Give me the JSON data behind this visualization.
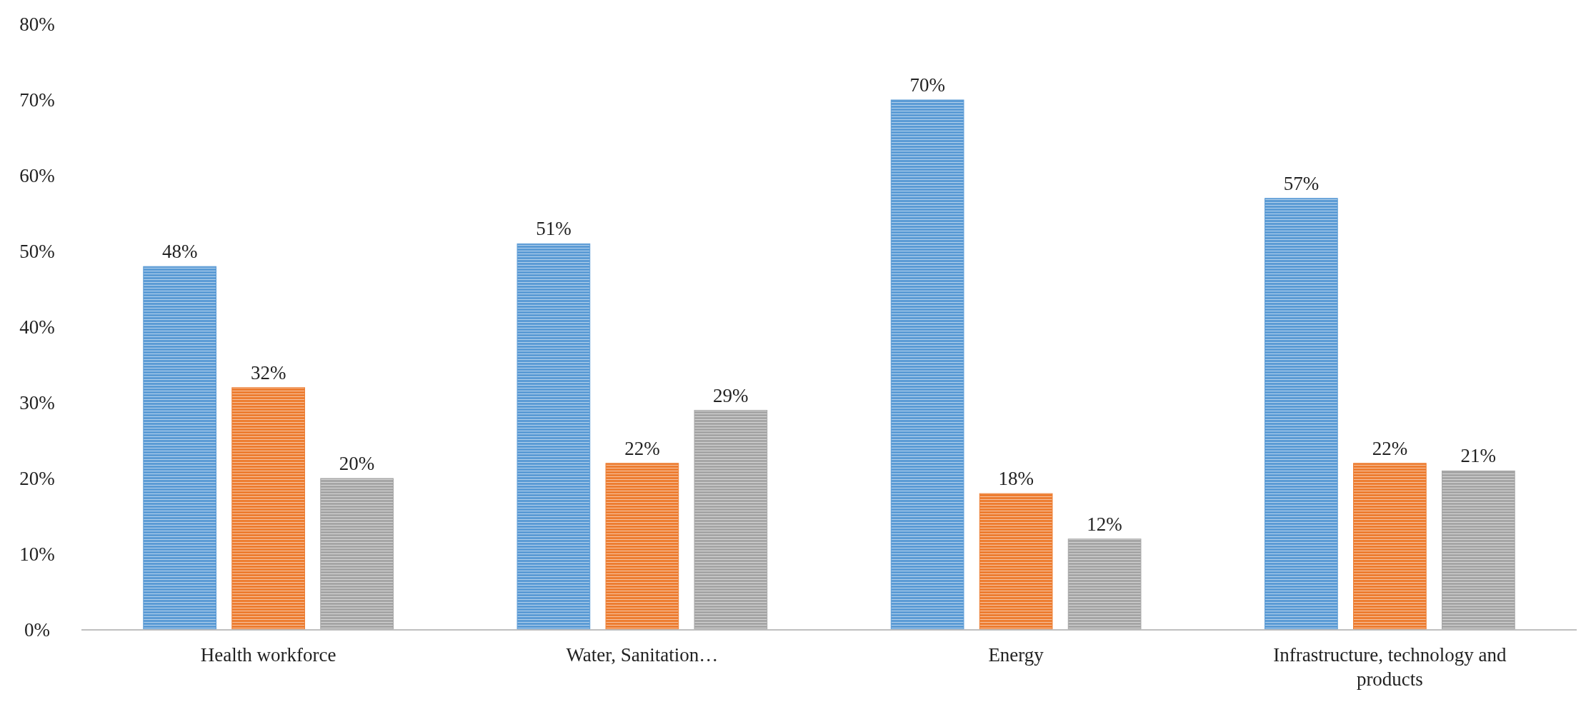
{
  "chart_data": {
    "type": "bar",
    "categories": [
      "Health workforce",
      "Water, Sanitation…",
      "Energy",
      "Infrastructure, technology and products"
    ],
    "series": [
      {
        "color": "#5b9bd5",
        "values": [
          48,
          51,
          70,
          57
        ]
      },
      {
        "color": "#ed7d31",
        "values": [
          32,
          22,
          18,
          22
        ]
      },
      {
        "color": "#a5a5a5",
        "values": [
          20,
          29,
          12,
          21
        ]
      }
    ],
    "value_labels": [
      [
        "48%",
        "51%",
        "70%",
        "57%"
      ],
      [
        "32%",
        "22%",
        "18%",
        "22%"
      ],
      [
        "20%",
        "29%",
        "12%",
        "21%"
      ]
    ],
    "ylim": [
      0,
      80
    ],
    "yticks": [
      {
        "value": 0,
        "label": "0%"
      },
      {
        "value": 10,
        "label": "10%"
      },
      {
        "value": 20,
        "label": "20%"
      },
      {
        "value": 30,
        "label": "30%"
      },
      {
        "value": 40,
        "label": "40%"
      },
      {
        "value": 50,
        "label": "50%"
      },
      {
        "value": 60,
        "label": "60%"
      },
      {
        "value": 70,
        "label": "70%"
      },
      {
        "value": 80,
        "label": "80%"
      }
    ],
    "grid": false
  }
}
